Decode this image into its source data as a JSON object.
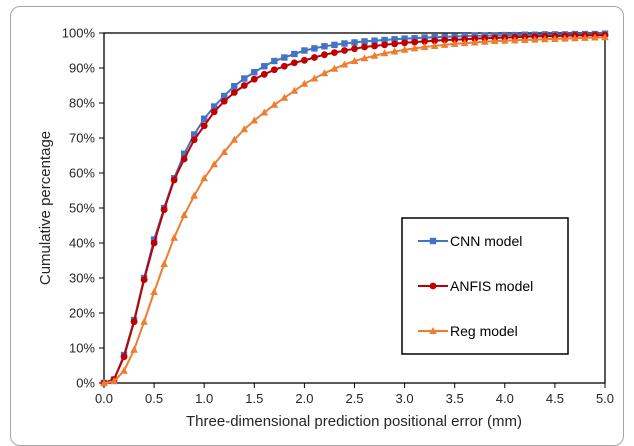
{
  "chart_data": {
    "type": "line",
    "title": "",
    "xlabel": "Three-dimensional prediction positional error (mm)",
    "ylabel": "Cumulative percentage",
    "xlim": [
      0,
      5
    ],
    "ylim": [
      0,
      100
    ],
    "xticks": [
      "0.0",
      "0.5",
      "1.0",
      "1.5",
      "2.0",
      "2.5",
      "3.0",
      "3.5",
      "4.0",
      "4.5",
      "5.0"
    ],
    "yticks": [
      "0%",
      "10%",
      "20%",
      "30%",
      "40%",
      "50%",
      "60%",
      "70%",
      "80%",
      "90%",
      "100%"
    ],
    "grid": false,
    "legend_position": "center-right",
    "x": [
      0.0,
      0.1,
      0.2,
      0.3,
      0.4,
      0.5,
      0.6,
      0.7,
      0.8,
      0.9,
      1.0,
      1.1,
      1.2,
      1.3,
      1.4,
      1.5,
      1.6,
      1.7,
      1.8,
      1.9,
      2.0,
      2.1,
      2.2,
      2.3,
      2.4,
      2.5,
      2.6,
      2.7,
      2.8,
      2.9,
      3.0,
      3.1,
      3.2,
      3.3,
      3.4,
      3.5,
      3.6,
      3.7,
      3.8,
      3.9,
      4.0,
      4.1,
      4.2,
      4.3,
      4.4,
      4.5,
      4.6,
      4.7,
      4.8,
      4.9,
      5.0
    ],
    "series": [
      {
        "name": "CNN model",
        "color": "#4472c4",
        "marker": "square",
        "values": [
          0,
          1.0,
          8.0,
          18.0,
          30.0,
          41.0,
          50.0,
          58.5,
          65.5,
          71.0,
          75.5,
          79.0,
          82.0,
          84.8,
          87.0,
          88.8,
          90.5,
          92.0,
          93.0,
          94.0,
          95.0,
          95.6,
          96.2,
          96.6,
          97.0,
          97.3,
          97.6,
          97.8,
          98.0,
          98.2,
          98.4,
          98.5,
          98.7,
          98.8,
          98.9,
          99.0,
          99.1,
          99.2,
          99.2,
          99.3,
          99.4,
          99.4,
          99.5,
          99.5,
          99.6,
          99.6,
          99.6,
          99.7,
          99.7,
          99.7,
          99.8
        ]
      },
      {
        "name": "ANFIS model",
        "color": "#c00000",
        "marker": "circle",
        "values": [
          0,
          1.0,
          7.5,
          17.5,
          29.5,
          40.0,
          49.5,
          58.0,
          64.0,
          69.5,
          73.5,
          77.5,
          80.5,
          83.0,
          85.0,
          86.8,
          88.2,
          89.5,
          90.5,
          91.5,
          92.2,
          93.0,
          93.8,
          94.4,
          95.0,
          95.5,
          96.0,
          96.3,
          96.6,
          96.9,
          97.2,
          97.4,
          97.6,
          97.8,
          98.0,
          98.1,
          98.2,
          98.4,
          98.5,
          98.6,
          98.7,
          98.8,
          98.9,
          99.0,
          99.1,
          99.1,
          99.2,
          99.3,
          99.3,
          99.4,
          99.4
        ]
      },
      {
        "name": "Reg model",
        "color": "#ed7d31",
        "marker": "triangle",
        "values": [
          0,
          0.5,
          3.5,
          9.5,
          17.5,
          26.0,
          34.0,
          41.5,
          48.0,
          53.5,
          58.5,
          62.5,
          66.0,
          69.5,
          72.5,
          75.0,
          77.3,
          79.5,
          81.5,
          83.5,
          85.5,
          87.0,
          88.5,
          89.8,
          91.0,
          92.0,
          92.8,
          93.5,
          94.2,
          94.7,
          95.2,
          95.6,
          96.0,
          96.3,
          96.6,
          96.9,
          97.1,
          97.3,
          97.5,
          97.7,
          97.8,
          97.9,
          98.0,
          98.1,
          98.2,
          98.3,
          98.4,
          98.5,
          98.6,
          98.7,
          98.8
        ]
      }
    ]
  }
}
